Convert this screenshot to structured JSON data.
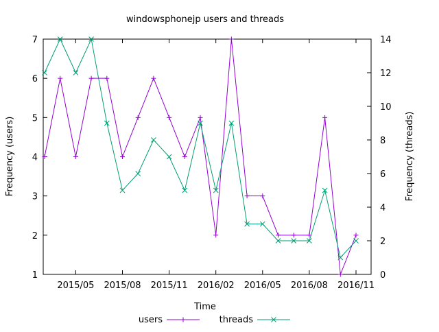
{
  "chart_data": {
    "type": "line",
    "title": "windowsphonejp users and threads",
    "xlabel": "Time",
    "ylabel": "Frequency (users)",
    "y2label": "Frequency (threads)",
    "grid": false,
    "legend_placement": "bottom-center",
    "x_tick_labels": [
      "2015/05",
      "2015/08",
      "2015/11",
      "2016/02",
      "2016/05",
      "2016/08",
      "2016/11"
    ],
    "y_ticks": [
      "1",
      "2",
      "3",
      "4",
      "5",
      "6",
      "7"
    ],
    "y2_ticks": [
      "0",
      "2",
      "4",
      "6",
      "8",
      "10",
      "12",
      "14"
    ],
    "ylim": [
      1,
      7
    ],
    "y2lim": [
      0,
      14
    ],
    "x": [
      "2015/03",
      "2015/04",
      "2015/05",
      "2015/06",
      "2015/07",
      "2015/08",
      "2015/09",
      "2015/10",
      "2015/11",
      "2015/12",
      "2016/01",
      "2016/02",
      "2016/03",
      "2016/04",
      "2016/05",
      "2016/06",
      "2016/07",
      "2016/08",
      "2016/09",
      "2016/10",
      "2016/11"
    ],
    "series": [
      {
        "name": "users",
        "axis": "left",
        "color": "#9400d3",
        "marker": "plus",
        "values": [
          4,
          6,
          4,
          6,
          6,
          4,
          5,
          6,
          5,
          4,
          5,
          2,
          7,
          3,
          3,
          2,
          2,
          2,
          5,
          1,
          2
        ]
      },
      {
        "name": "threads",
        "axis": "right",
        "color": "#009e73",
        "marker": "cross",
        "values": [
          12,
          14,
          12,
          14,
          9,
          5,
          6,
          8,
          7,
          5,
          9,
          5,
          9,
          3,
          3,
          2,
          2,
          2,
          5,
          1,
          2
        ]
      }
    ]
  }
}
